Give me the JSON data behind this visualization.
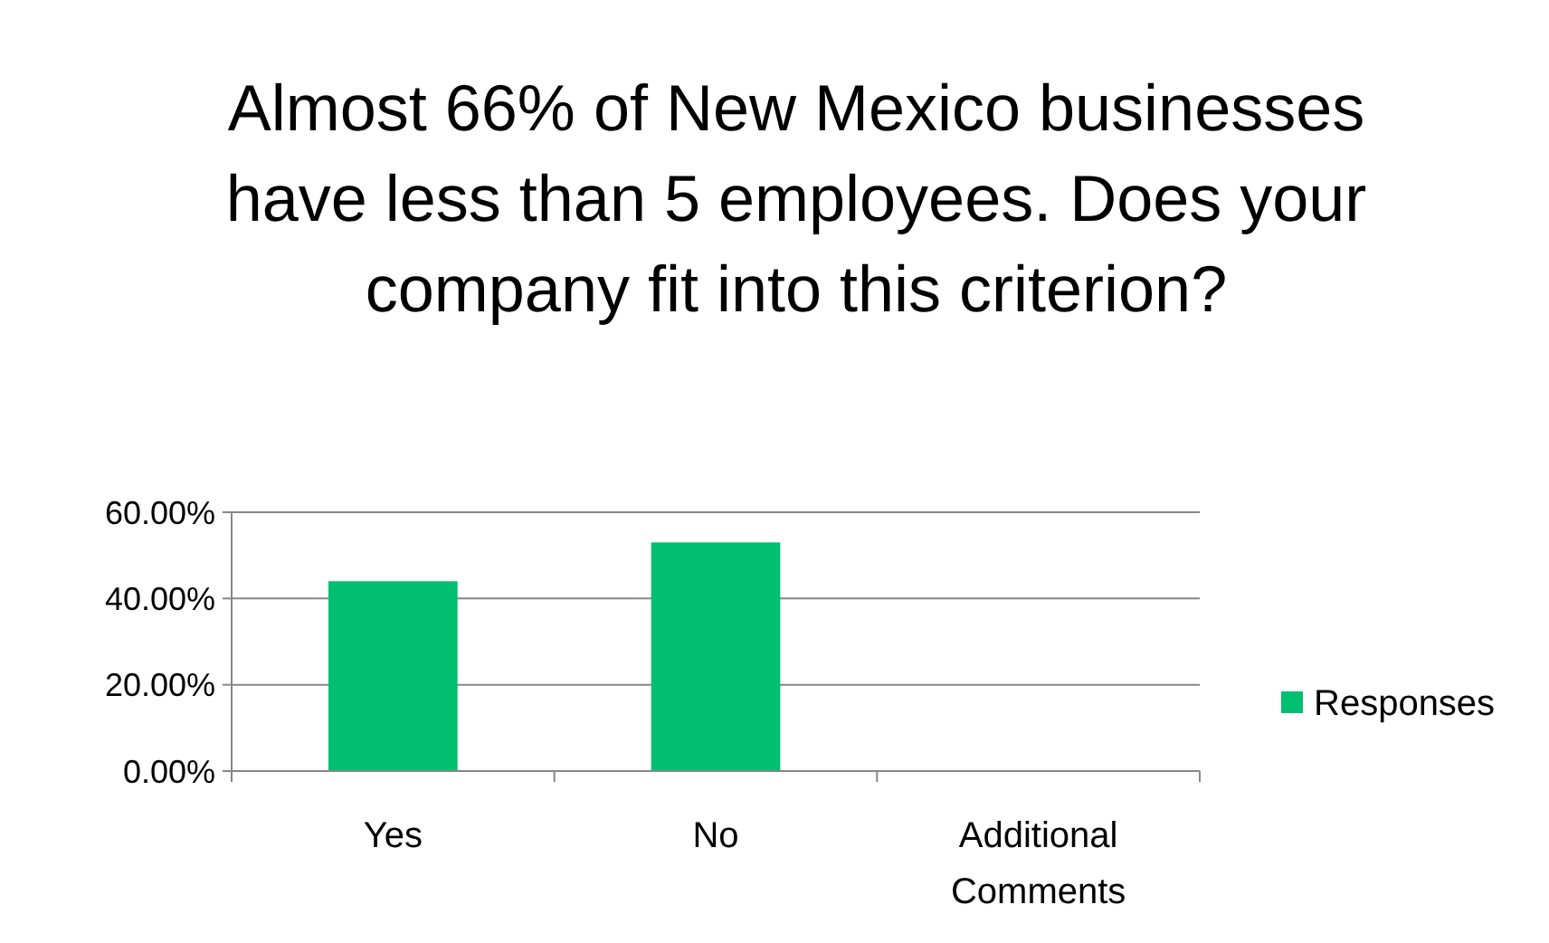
{
  "chart_data": {
    "type": "bar",
    "title": "Almost 66% of New Mexico businesses have less than 5 employees. Does your company fit into this criterion?",
    "categories": [
      "Yes",
      "No",
      "Additional Comments"
    ],
    "series": [
      {
        "name": "Responses",
        "color": "#00bf6f",
        "values": [
          44,
          53,
          0
        ]
      }
    ],
    "ylim": [
      0,
      60
    ],
    "yticks": [
      {
        "value": 0,
        "label": "0.00%"
      },
      {
        "value": 20,
        "label": "20.00%"
      },
      {
        "value": 40,
        "label": "40.00%"
      },
      {
        "value": 60,
        "label": "60.00%"
      }
    ],
    "grid": "y",
    "legend": "right"
  }
}
